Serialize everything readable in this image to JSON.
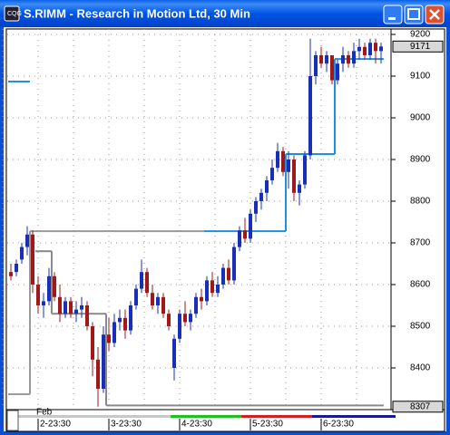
{
  "window": {
    "title": "S.RIMM - Research in Motion Ltd, 30 Min"
  },
  "chart_data": {
    "type": "candlestick",
    "x_month": "Feb",
    "categories": [
      null,
      null,
      null,
      null,
      null,
      "2-23:30",
      null,
      null,
      null,
      null,
      null,
      null,
      null,
      null,
      null,
      null,
      null,
      null,
      "3-23:30",
      null,
      null,
      null,
      null,
      null,
      null,
      null,
      null,
      null,
      null,
      null,
      null,
      "4-23:30",
      null,
      null,
      null,
      null,
      null,
      null,
      null,
      null,
      null,
      null,
      null,
      null,
      "5-23:30",
      null,
      null,
      null,
      null,
      null,
      null,
      null,
      null,
      null,
      null,
      null,
      null,
      "6-23:30",
      null,
      null,
      null,
      null,
      null,
      null,
      null,
      null,
      null,
      null,
      null
    ],
    "open": [
      8630,
      8630,
      8660,
      8690,
      8720,
      8600,
      8550,
      8560,
      8620,
      8570,
      8530,
      8560,
      8530,
      8540,
      8550,
      8500,
      8420,
      8350,
      8480,
      8460,
      8510,
      8520,
      8490,
      8550,
      8590,
      8630,
      8580,
      8550,
      8570,
      8530,
      8400,
      8470,
      8530,
      8510,
      8530,
      8570,
      8560,
      8610,
      8580,
      8600,
      8640,
      8610,
      8690,
      8730,
      8710,
      8770,
      8800,
      8820,
      8850,
      8880,
      8920,
      8870,
      8900,
      8820,
      8840,
      8910,
      9100,
      9150,
      9130,
      9150,
      9090,
      9130,
      9150,
      9130,
      9160,
      9170,
      9150,
      9180,
      9160
    ],
    "high": [
      8650,
      8660,
      8700,
      8740,
      8730,
      8620,
      8580,
      8640,
      8630,
      8600,
      8570,
      8570,
      8560,
      8570,
      8560,
      8510,
      8450,
      8500,
      8520,
      8530,
      8540,
      8540,
      8560,
      8600,
      8660,
      8640,
      8600,
      8580,
      8580,
      8540,
      8480,
      8540,
      8560,
      8540,
      8580,
      8590,
      8620,
      8630,
      8620,
      8650,
      8660,
      8700,
      8740,
      8760,
      8780,
      8810,
      8830,
      8860,
      8900,
      8940,
      8930,
      8920,
      8910,
      8850,
      8920,
      9190,
      9160,
      9170,
      9160,
      9150,
      9140,
      9170,
      9160,
      9180,
      9190,
      9180,
      9190,
      9190,
      9180
    ],
    "low": [
      8610,
      8620,
      8650,
      8670,
      8580,
      8530,
      8520,
      8550,
      8560,
      8510,
      8520,
      8520,
      8510,
      8520,
      8490,
      8380,
      8307,
      8340,
      8440,
      8450,
      8490,
      8470,
      8480,
      8540,
      8580,
      8570,
      8540,
      8530,
      8520,
      8490,
      8370,
      8460,
      8500,
      8490,
      8520,
      8540,
      8550,
      8570,
      8570,
      8590,
      8600,
      8600,
      8680,
      8700,
      8700,
      8750,
      8780,
      8800,
      8840,
      8870,
      8860,
      8830,
      8800,
      8790,
      8830,
      8900,
      9080,
      9120,
      9110,
      9080,
      9080,
      9110,
      9120,
      9120,
      9140,
      9140,
      9140,
      9130,
      9130
    ],
    "close": [
      8620,
      8650,
      8690,
      8720,
      8600,
      8550,
      8560,
      8620,
      8570,
      8530,
      8560,
      8530,
      8540,
      8550,
      8500,
      8420,
      8350,
      8480,
      8460,
      8510,
      8520,
      8490,
      8550,
      8590,
      8630,
      8580,
      8550,
      8570,
      8530,
      8500,
      8470,
      8530,
      8510,
      8530,
      8570,
      8560,
      8610,
      8580,
      8600,
      8640,
      8610,
      8690,
      8730,
      8710,
      8770,
      8800,
      8820,
      8850,
      8880,
      8920,
      8870,
      8900,
      8820,
      8840,
      8910,
      9100,
      9150,
      9130,
      9150,
      9090,
      9130,
      9150,
      9130,
      9160,
      9170,
      9150,
      9180,
      9160,
      9171
    ],
    "up_color": "#1a2fb8",
    "down_color": "#a01818",
    "series": [
      {
        "color": "#1e8fe0",
        "values": [
          9087,
          9087,
          9087,
          9087,
          null,
          null,
          null,
          null,
          null,
          null,
          null,
          null,
          null,
          null,
          null,
          null,
          null,
          null,
          null,
          null,
          null,
          null,
          null,
          null,
          null,
          null,
          null,
          null,
          null,
          null,
          null,
          null,
          null,
          null,
          null,
          null,
          8728,
          8728,
          8728,
          8728,
          8728,
          8728,
          8728,
          8728,
          8728,
          8728,
          8728,
          8728,
          8728,
          8728,
          8728,
          8913,
          8913,
          8913,
          8913,
          8913,
          8913,
          8913,
          8913,
          8913,
          9141,
          9141,
          9141,
          9141,
          9141,
          9141,
          9141,
          9141,
          9141
        ]
      },
      {
        "color": "#9a9a9a",
        "values": [
          8337,
          8337,
          8337,
          8337,
          8728,
          8728,
          8728,
          8728,
          8728,
          8728,
          8728,
          8728,
          8728,
          8728,
          8728,
          8728,
          8728,
          8728,
          8728,
          8728,
          8728,
          8728,
          8728,
          8728,
          8728,
          8728,
          8728,
          8728,
          8728,
          8728,
          8728,
          8728,
          8728,
          8728,
          8728,
          8728,
          null,
          null,
          null,
          null,
          null,
          null,
          null,
          null,
          null,
          null,
          null,
          null,
          null,
          null,
          null,
          null,
          null,
          null,
          null,
          null,
          null,
          null,
          null,
          null,
          null,
          null,
          null,
          null,
          null,
          null,
          null,
          null,
          null
        ]
      },
      {
        "color": "#8a8a8a",
        "values": [
          null,
          null,
          null,
          null,
          null,
          8680,
          8680,
          8680,
          8530,
          8530,
          8530,
          8530,
          8530,
          8530,
          8530,
          8530,
          8530,
          8530,
          8310,
          8310,
          8310,
          8310,
          8310,
          8310,
          8310,
          8310,
          8310,
          8310,
          8310,
          8310,
          8310,
          8310,
          8310,
          8310,
          8310,
          8310,
          8310,
          8310,
          8310,
          8310,
          8310,
          8310,
          8310,
          8310,
          8310,
          8310,
          8310,
          8310,
          8310,
          8310,
          8310,
          8310,
          8310,
          8310,
          8310,
          8310,
          8310,
          8310,
          8310,
          8310,
          8310,
          8310,
          8310,
          8310,
          8310,
          8310,
          8310,
          8310,
          8310
        ]
      }
    ],
    "ylim": [
      8300,
      9213
    ],
    "yticks": [
      8400,
      8500,
      8600,
      8700,
      8800,
      8900,
      9000,
      9100,
      9200
    ],
    "grid": true
  }
}
